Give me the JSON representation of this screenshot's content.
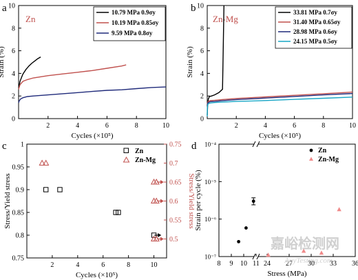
{
  "colors": {
    "black": "#000000",
    "red": "#c0504d",
    "blue": "#1f2a7a",
    "cyan": "#17a6c6",
    "pink": "#f08a8a",
    "watermark": "#c8c8c8"
  },
  "watermark": {
    "cn": "嘉峪检测网",
    "url": "AnyTesting.com"
  },
  "chart_data": [
    {
      "id": "a",
      "panel": "a",
      "type": "line",
      "tag": "Zn",
      "tag_color": "#c0504d",
      "xlabel": "Cycles (×10⁵)",
      "ylabel": "Strain (%)",
      "xlim": [
        0,
        10
      ],
      "ylim": [
        0,
        10
      ],
      "xticks": [
        2,
        4,
        6,
        8,
        10
      ],
      "yticks": [
        0,
        2,
        4,
        6,
        8,
        10
      ],
      "legend_position": "top-right",
      "series": [
        {
          "name": "10.79 MPa 0.9σy",
          "color": "#000000",
          "x": [
            0,
            0.05,
            0.1,
            0.2,
            0.3,
            0.5,
            0.7,
            0.9,
            1.1,
            1.3,
            1.5
          ],
          "y": [
            2.7,
            3.0,
            3.3,
            3.65,
            3.95,
            4.35,
            4.65,
            4.9,
            5.1,
            5.3,
            5.45
          ]
        },
        {
          "name": "10.19 MPa 0.85σy",
          "color": "#c0504d",
          "x": [
            0,
            0.1,
            0.3,
            0.6,
            1,
            2,
            3,
            4,
            5,
            6,
            7,
            7.3
          ],
          "y": [
            2.6,
            3.0,
            3.3,
            3.45,
            3.6,
            3.8,
            3.95,
            4.1,
            4.25,
            4.45,
            4.65,
            4.75
          ]
        },
        {
          "name": "9.59 MPa 0.8σy",
          "color": "#1f2a7a",
          "x": [
            0,
            0.05,
            0.15,
            0.3,
            0.6,
            1,
            2,
            3,
            4,
            5,
            6,
            7,
            8,
            9,
            10
          ],
          "y": [
            1.4,
            1.6,
            1.75,
            1.85,
            1.95,
            2.0,
            2.1,
            2.2,
            2.3,
            2.4,
            2.5,
            2.55,
            2.65,
            2.75,
            2.8
          ]
        }
      ]
    },
    {
      "id": "b",
      "panel": "b",
      "type": "line",
      "tag": "Zn-Mg",
      "tag_color": "#c0504d",
      "xlabel": "Cycles (×10⁵)",
      "ylabel": "Strain (%)",
      "xlim": [
        0,
        10
      ],
      "ylim": [
        0,
        10
      ],
      "xticks": [
        2,
        4,
        6,
        8,
        10
      ],
      "yticks": [
        0,
        2,
        4,
        6,
        8,
        10
      ],
      "legend_position": "top-right",
      "series": [
        {
          "name": "33.81 MPa 0.7σy",
          "color": "#000000",
          "x": [
            0,
            0.03,
            0.08,
            0.15,
            0.3,
            0.5,
            0.8,
            1.05,
            1.1,
            1.15
          ],
          "y": [
            0.3,
            1.2,
            1.75,
            1.95,
            2.0,
            2.1,
            2.3,
            2.6,
            6.0,
            10
          ]
        },
        {
          "name": "31.40 MPa 0.65σy",
          "color": "#c0504d",
          "x": [
            0,
            0.05,
            0.2,
            0.5,
            1,
            2,
            4,
            6,
            8,
            10
          ],
          "y": [
            1.3,
            1.5,
            1.6,
            1.62,
            1.68,
            1.78,
            1.92,
            2.06,
            2.2,
            2.35
          ]
        },
        {
          "name": "28.98 MPa 0.6σy",
          "color": "#1f2a7a",
          "x": [
            0,
            0.05,
            0.2,
            0.5,
            1,
            2,
            4,
            6,
            8,
            10
          ],
          "y": [
            1.2,
            1.4,
            1.5,
            1.52,
            1.58,
            1.68,
            1.82,
            1.96,
            2.1,
            2.22
          ]
        },
        {
          "name": "24.15 MPa 0.5σy",
          "color": "#17a6c6",
          "x": [
            0,
            0.01,
            0.05,
            0.2,
            0.5,
            1,
            2,
            4,
            6,
            8,
            10
          ],
          "y": [
            0.2,
            1.0,
            1.3,
            1.38,
            1.42,
            1.46,
            1.52,
            1.6,
            1.7,
            1.8,
            1.9
          ]
        }
      ]
    },
    {
      "id": "c",
      "panel": "c",
      "type": "scatter",
      "xlabel": "Cycles (×10⁵)",
      "ylabel": "Stress/Yield stress",
      "ylabel_right": "Stress/Yield stress",
      "xlim": [
        0,
        11
      ],
      "ylim": [
        0.75,
        1.0
      ],
      "ylim_right": [
        0.45,
        0.75
      ],
      "xticks": [
        2,
        4,
        6,
        8,
        10
      ],
      "yticks": [
        0.75,
        0.8,
        0.85,
        0.9,
        0.95,
        1.0
      ],
      "yticks_right": [
        0.5,
        0.55,
        0.6,
        0.65,
        0.7,
        0.75
      ],
      "legend_position": "top-right",
      "series": [
        {
          "name": "Zn",
          "axis": "left",
          "marker": "square",
          "color": "#000000",
          "points": [
            [
              1.5,
              0.9
            ],
            [
              2.6,
              0.9
            ],
            [
              7.0,
              0.85
            ],
            [
              7.2,
              0.85
            ],
            [
              10.0,
              0.8
            ]
          ]
        },
        {
          "name": "Zn-Mg",
          "axis": "right",
          "marker": "triangle",
          "color": "#c0504d",
          "points": [
            [
              1.2,
              0.7
            ],
            [
              1.5,
              0.7
            ],
            [
              10.0,
              0.65
            ],
            [
              10.2,
              0.65
            ],
            [
              10.0,
              0.6
            ],
            [
              10.2,
              0.6
            ],
            [
              10.0,
              0.5
            ],
            [
              10.2,
              0.5
            ]
          ]
        }
      ],
      "runout_arrows": [
        [
          10.2,
          0.8,
          "left"
        ],
        [
          10.4,
          0.65,
          "right"
        ],
        [
          10.4,
          0.6,
          "right"
        ],
        [
          10.4,
          0.5,
          "right"
        ]
      ]
    },
    {
      "id": "d",
      "panel": "d",
      "type": "scatter",
      "xlabel": "Stress (MPa)",
      "ylabel": "Strain per cycle (%)",
      "ylog": true,
      "ylim": [
        1e-07,
        0.0001
      ],
      "ytick_labels": [
        "10⁻⁴",
        "10⁻⁵",
        "10⁻⁶",
        "10⁻⁷"
      ],
      "xtick_labels": [
        "8",
        "9",
        "10",
        "11",
        "24",
        "27",
        "30",
        "33",
        "36"
      ],
      "xtick_values": [
        8,
        9,
        10,
        11,
        24,
        27,
        30,
        33,
        36
      ],
      "axis_break": "between 11 and 24",
      "legend_position": "top-right",
      "series": [
        {
          "name": "Zn",
          "marker": "circle",
          "color": "#000000",
          "points": [
            [
              9.59,
              2.5e-07
            ],
            [
              10.19,
              5.8e-07
            ],
            [
              10.79,
              3e-06
            ]
          ],
          "error_bars": [
            null,
            null,
            [
              2.4e-06,
              3.7e-06
            ]
          ]
        },
        {
          "name": "Zn-Mg",
          "marker": "triangle",
          "color": "#f08a8a",
          "points": [
            [
              24.15,
              1.1e-07
            ],
            [
              28.98,
              1.4e-07
            ],
            [
              31.4,
              1.25e-07
            ],
            [
              33.81,
              1.8e-06
            ]
          ]
        }
      ]
    }
  ]
}
